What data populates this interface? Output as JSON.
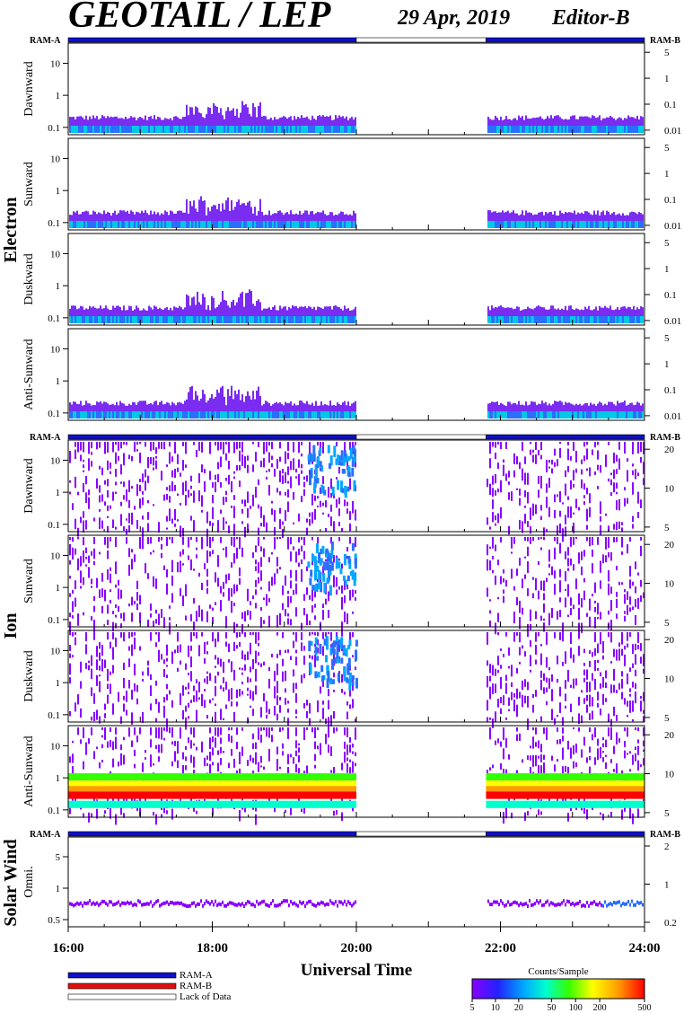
{
  "header": {
    "title": "GEOTAIL / LEP",
    "date": "29 Apr, 2019",
    "editor": "Editor-B"
  },
  "chart_data": {
    "type": "heatmap",
    "xlabel": "Universal Time",
    "x_ticks": [
      "16:00",
      "18:00",
      "20:00",
      "22:00",
      "24:00"
    ],
    "x_range_hours": [
      16,
      24
    ],
    "time_bar": {
      "left_label": "RAM-A",
      "right_label": "RAM-B",
      "segments": [
        {
          "start": 16.0,
          "end": 20.0,
          "state": "RAM-A"
        },
        {
          "start": 20.0,
          "end": 21.8,
          "state": "Lack of Data"
        },
        {
          "start": 21.8,
          "end": 24.0,
          "state": "RAM-A"
        }
      ]
    },
    "data_gap": [
      20.0,
      21.8
    ],
    "groups": [
      {
        "species": "Electron",
        "left_ticks": [
          "10",
          "1",
          "0.1"
        ],
        "right_ticks": [
          "5",
          "1",
          "0.1",
          "0.01"
        ],
        "panels": [
          {
            "label": "Dawnward",
            "activity": "low"
          },
          {
            "label": "Sunward",
            "activity": "low"
          },
          {
            "label": "Duskward",
            "activity": "low"
          },
          {
            "label": "Anti-Sunward",
            "activity": "low"
          }
        ]
      },
      {
        "species": "Ion",
        "left_ticks": [
          "10",
          "1",
          "0.1"
        ],
        "right_ticks": [
          "20",
          "10",
          "5"
        ],
        "panels": [
          {
            "label": "Dawnward",
            "activity": "sparse"
          },
          {
            "label": "Sunward",
            "activity": "sparse"
          },
          {
            "label": "Duskward",
            "activity": "sparse"
          },
          {
            "label": "Anti-Sunward",
            "activity": "band"
          }
        ]
      },
      {
        "species": "Solar Wind",
        "left_ticks": [
          "5",
          "1",
          "0.5"
        ],
        "right_ticks": [
          "2",
          "1",
          "0.2"
        ],
        "panels": [
          {
            "label": "Omni.",
            "activity": "trace"
          }
        ]
      }
    ],
    "legend": {
      "items": [
        {
          "label": "RAM-A",
          "color": "#1010c8"
        },
        {
          "label": "RAM-B",
          "color": "#e01010"
        },
        {
          "label": "Lack of Data",
          "color": "#ffffff"
        }
      ]
    },
    "colorbar": {
      "title": "Counts/Sample",
      "ticks": [
        "5",
        "10",
        "20",
        "50",
        "100",
        "200",
        "500"
      ],
      "colors": [
        "#8800ff",
        "#2222ff",
        "#00a8ff",
        "#00ffcc",
        "#33ff00",
        "#ffff00",
        "#ff9900",
        "#ff0000"
      ]
    }
  }
}
